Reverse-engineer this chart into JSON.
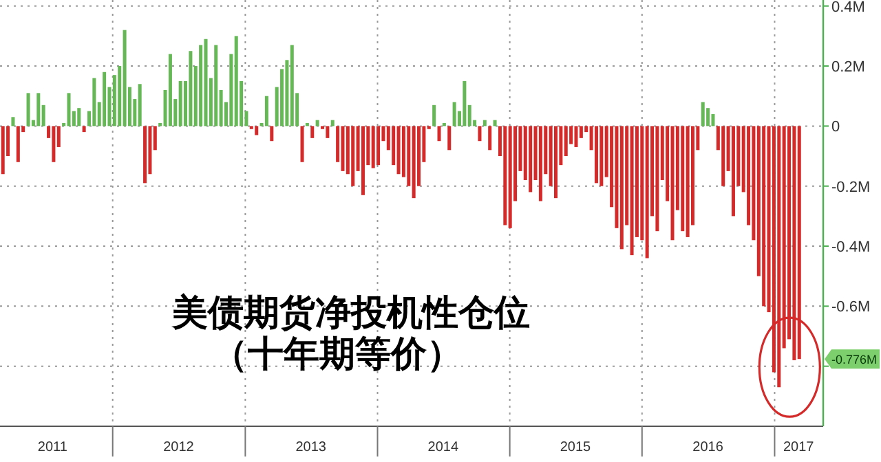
{
  "chart_data": {
    "type": "bar",
    "title": "美债期货净投机性仓位",
    "subtitle": "（十年期等价）",
    "x": [
      "2011-03-04",
      "2011-03-18",
      "2011-04-01",
      "2011-04-15",
      "2011-04-29",
      "2011-05-13",
      "2011-05-27",
      "2011-06-10",
      "2011-06-24",
      "2011-07-08",
      "2011-07-22",
      "2011-08-05",
      "2011-08-19",
      "2011-09-02",
      "2011-09-16",
      "2011-09-30",
      "2011-10-14",
      "2011-10-28",
      "2011-11-11",
      "2011-11-25",
      "2011-12-09",
      "2011-12-23",
      "2012-01-06",
      "2012-01-20",
      "2012-02-03",
      "2012-02-17",
      "2012-03-02",
      "2012-03-16",
      "2012-03-30",
      "2012-04-13",
      "2012-04-27",
      "2012-05-11",
      "2012-05-25",
      "2012-06-08",
      "2012-06-22",
      "2012-07-06",
      "2012-07-20",
      "2012-08-03",
      "2012-08-17",
      "2012-08-31",
      "2012-09-14",
      "2012-09-28",
      "2012-10-12",
      "2012-10-26",
      "2012-11-09",
      "2012-11-23",
      "2012-12-07",
      "2012-12-21",
      "2013-01-04",
      "2013-01-18",
      "2013-02-01",
      "2013-02-15",
      "2013-03-01",
      "2013-03-15",
      "2013-03-29",
      "2013-04-12",
      "2013-04-26",
      "2013-05-10",
      "2013-05-24",
      "2013-06-07",
      "2013-06-21",
      "2013-07-05",
      "2013-07-19",
      "2013-08-02",
      "2013-08-16",
      "2013-08-30",
      "2013-09-13",
      "2013-09-27",
      "2013-10-11",
      "2013-10-25",
      "2013-11-08",
      "2013-11-22",
      "2013-12-06",
      "2013-12-20",
      "2014-01-03",
      "2014-01-17",
      "2014-01-31",
      "2014-02-14",
      "2014-02-28",
      "2014-03-14",
      "2014-03-28",
      "2014-04-11",
      "2014-04-25",
      "2014-05-09",
      "2014-05-23",
      "2014-06-06",
      "2014-06-20",
      "2014-07-04",
      "2014-07-18",
      "2014-08-01",
      "2014-08-15",
      "2014-08-29",
      "2014-09-12",
      "2014-09-26",
      "2014-10-10",
      "2014-10-24",
      "2014-11-07",
      "2014-11-21",
      "2014-12-05",
      "2014-12-19",
      "2015-01-02",
      "2015-01-16",
      "2015-01-30",
      "2015-02-13",
      "2015-02-27",
      "2015-03-13",
      "2015-03-27",
      "2015-04-10",
      "2015-04-24",
      "2015-05-08",
      "2015-05-22",
      "2015-06-05",
      "2015-06-19",
      "2015-07-03",
      "2015-07-17",
      "2015-07-31",
      "2015-08-14",
      "2015-08-28",
      "2015-09-11",
      "2015-09-25",
      "2015-10-09",
      "2015-10-23",
      "2015-11-06",
      "2015-11-20",
      "2015-12-04",
      "2015-12-18",
      "2016-01-01",
      "2016-01-15",
      "2016-01-29",
      "2016-02-12",
      "2016-02-26",
      "2016-03-11",
      "2016-03-25",
      "2016-04-08",
      "2016-04-22",
      "2016-05-06",
      "2016-05-20",
      "2016-06-03",
      "2016-06-17",
      "2016-07-01",
      "2016-07-15",
      "2016-07-29",
      "2016-08-12",
      "2016-08-26",
      "2016-09-09",
      "2016-09-23",
      "2016-10-07",
      "2016-10-21",
      "2016-11-04",
      "2016-11-18",
      "2016-12-02",
      "2016-12-16",
      "2016-12-30",
      "2017-01-13",
      "2017-01-27",
      "2017-02-10",
      "2017-02-24",
      "2017-03-10"
    ],
    "values": [
      -0.16,
      -0.1,
      0.03,
      -0.12,
      -0.02,
      0.11,
      0.02,
      0.11,
      0.07,
      -0.04,
      -0.12,
      -0.07,
      0.01,
      0.11,
      0.05,
      0.06,
      -0.02,
      0.05,
      0.16,
      0.08,
      0.18,
      0.13,
      0.17,
      0.2,
      0.32,
      0.13,
      0.09,
      0.14,
      -0.19,
      -0.16,
      -0.08,
      0.01,
      0.12,
      0.24,
      0.09,
      0.15,
      0.15,
      0.25,
      0.2,
      0.27,
      0.29,
      0.16,
      0.27,
      0.12,
      0.08,
      0.24,
      0.3,
      0.15,
      0.05,
      -0.01,
      -0.03,
      0.01,
      0.1,
      -0.05,
      0.13,
      0.19,
      0.22,
      0.27,
      0.11,
      -0.12,
      0.01,
      -0.04,
      0.02,
      -0.01,
      -0.04,
      0.02,
      -0.12,
      -0.15,
      -0.16,
      -0.2,
      -0.15,
      -0.23,
      -0.13,
      -0.14,
      -0.13,
      -0.05,
      -0.08,
      -0.13,
      -0.16,
      -0.17,
      -0.2,
      -0.24,
      -0.2,
      -0.12,
      -0.01,
      0.07,
      -0.05,
      0.01,
      -0.08,
      0.08,
      0.05,
      0.15,
      0.07,
      0.02,
      -0.05,
      0.02,
      -0.08,
      0.02,
      -0.1,
      -0.33,
      -0.34,
      -0.25,
      -0.15,
      -0.18,
      -0.22,
      -0.18,
      -0.25,
      -0.16,
      -0.2,
      -0.24,
      -0.13,
      -0.1,
      -0.06,
      -0.07,
      -0.04,
      -0.02,
      -0.08,
      -0.19,
      -0.2,
      -0.17,
      -0.27,
      -0.34,
      -0.41,
      -0.33,
      -0.43,
      -0.37,
      -0.38,
      -0.44,
      -0.3,
      -0.35,
      -0.18,
      -0.25,
      -0.38,
      -0.28,
      -0.35,
      -0.37,
      -0.33,
      -0.08,
      0.08,
      0.06,
      0.04,
      -0.08,
      -0.2,
      -0.15,
      -0.3,
      -0.2,
      -0.22,
      -0.33,
      -0.38,
      -0.5,
      -0.6,
      -0.62,
      -0.82,
      -0.87,
      -0.74,
      -0.71,
      -0.78,
      -0.776
    ],
    "colors": [
      "#d42a2a",
      "#d42a2a",
      "#66b857",
      "#d42a2a",
      "#d42a2a",
      "#66b857",
      "#66b857",
      "#66b857",
      "#66b857",
      "#d42a2a",
      "#d42a2a",
      "#d42a2a",
      "#66b857",
      "#66b857",
      "#66b857",
      "#66b857",
      "#d42a2a",
      "#66b857",
      "#66b857",
      "#66b857",
      "#66b857",
      "#66b857",
      "#66b857",
      "#66b857",
      "#66b857",
      "#66b857",
      "#66b857",
      "#66b857",
      "#d42a2a",
      "#d42a2a",
      "#d42a2a",
      "#66b857",
      "#66b857",
      "#66b857",
      "#66b857",
      "#66b857",
      "#66b857",
      "#66b857",
      "#66b857",
      "#66b857",
      "#66b857",
      "#66b857",
      "#66b857",
      "#66b857",
      "#66b857",
      "#66b857",
      "#66b857",
      "#66b857",
      "#66b857",
      "#d42a2a",
      "#d42a2a",
      "#66b857",
      "#66b857",
      "#d42a2a",
      "#66b857",
      "#66b857",
      "#66b857",
      "#66b857",
      "#66b857",
      "#d42a2a",
      "#66b857",
      "#d42a2a",
      "#66b857",
      "#d42a2a",
      "#d42a2a",
      "#66b857",
      "#d42a2a",
      "#d42a2a",
      "#d42a2a",
      "#d42a2a",
      "#d42a2a",
      "#d42a2a",
      "#d42a2a",
      "#d42a2a",
      "#d42a2a",
      "#d42a2a",
      "#d42a2a",
      "#d42a2a",
      "#d42a2a",
      "#d42a2a",
      "#d42a2a",
      "#d42a2a",
      "#d42a2a",
      "#d42a2a",
      "#d42a2a",
      "#66b857",
      "#d42a2a",
      "#66b857",
      "#d42a2a",
      "#66b857",
      "#66b857",
      "#66b857",
      "#66b857",
      "#66b857",
      "#d42a2a",
      "#66b857",
      "#d42a2a",
      "#66b857",
      "#d42a2a",
      "#d42a2a",
      "#d42a2a",
      "#d42a2a",
      "#d42a2a",
      "#d42a2a",
      "#d42a2a",
      "#d42a2a",
      "#d42a2a",
      "#d42a2a",
      "#d42a2a",
      "#d42a2a",
      "#d42a2a",
      "#d42a2a",
      "#d42a2a",
      "#d42a2a",
      "#d42a2a",
      "#d42a2a",
      "#d42a2a",
      "#d42a2a",
      "#d42a2a",
      "#d42a2a",
      "#d42a2a",
      "#d42a2a",
      "#d42a2a",
      "#d42a2a",
      "#d42a2a",
      "#d42a2a",
      "#d42a2a",
      "#d42a2a",
      "#d42a2a",
      "#d42a2a",
      "#d42a2a",
      "#d42a2a",
      "#d42a2a",
      "#d42a2a",
      "#d42a2a",
      "#d42a2a",
      "#d42a2a",
      "#d42a2a",
      "#66b857",
      "#66b857",
      "#66b857",
      "#d42a2a",
      "#d42a2a",
      "#d42a2a",
      "#d42a2a",
      "#d42a2a",
      "#d42a2a",
      "#d42a2a",
      "#d42a2a",
      "#d42a2a",
      "#d42a2a",
      "#d42a2a",
      "#d42a2a",
      "#d42a2a",
      "#d42a2a",
      "#d42a2a",
      "#d42a2a",
      "#d42a2a"
    ],
    "xlim": [
      "2011-02-24",
      "2017-05-15"
    ],
    "ylim": [
      -1.0,
      0.42
    ],
    "xticks": [
      {
        "value": "2012",
        "label": null
      },
      {
        "value": "2013",
        "label": null
      },
      {
        "value": "2014",
        "label": null
      },
      {
        "value": "2015",
        "label": null
      },
      {
        "value": "2016",
        "label": null
      },
      {
        "value": "2017",
        "label": null
      },
      {
        "value": "2011-07-19",
        "label": "2011"
      },
      {
        "value": "2012-07-01",
        "label": "2012"
      },
      {
        "value": "2013-07-01",
        "label": "2013"
      },
      {
        "value": "2014-07-01",
        "label": "2014"
      },
      {
        "value": "2015-07-01",
        "label": "2015"
      },
      {
        "value": "2016-07-01",
        "label": "2016"
      },
      {
        "value": "2017-03-08",
        "label": "2017"
      }
    ],
    "yticks": [
      {
        "value": 0.4,
        "label": "0.4M"
      },
      {
        "value": 0.2,
        "label": "0.2M"
      },
      0,
      {
        "value": -0.2,
        "label": "-0.2M"
      },
      {
        "value": -0.4,
        "label": "-0.4M"
      },
      {
        "value": -0.6,
        "label": "-0.6M"
      },
      {
        "value": -0.8,
        "label": null
      }
    ],
    "grid": true,
    "annotations": [
      "-0.776M"
    ]
  }
}
